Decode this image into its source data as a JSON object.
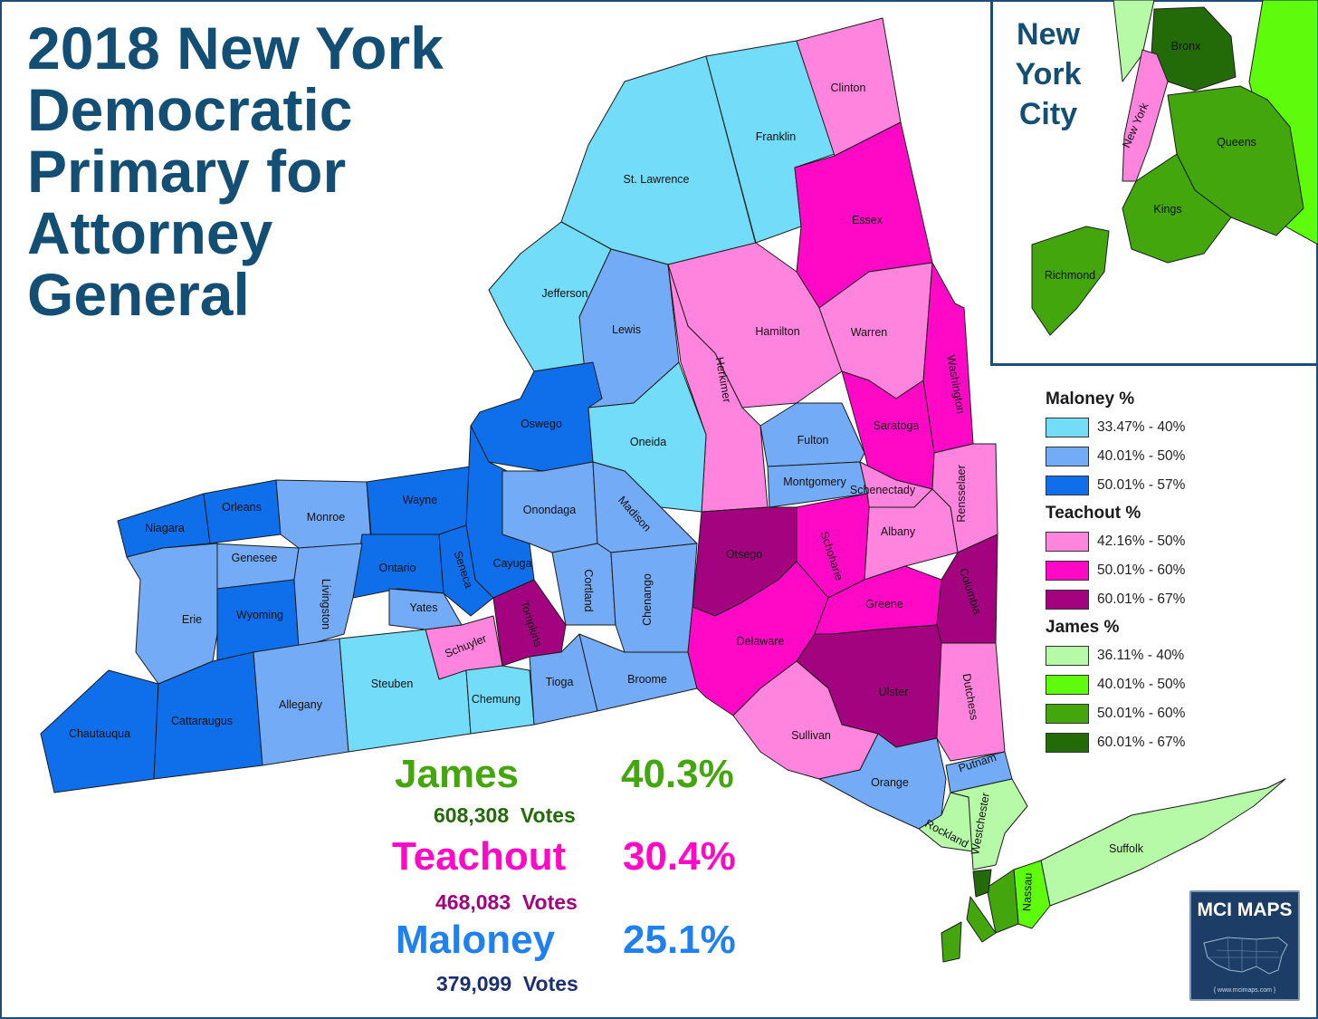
{
  "title": {
    "line1": "2018 New York",
    "line2": "Democratic",
    "line3": "Primary for",
    "line4": "Attorney",
    "line5": "General"
  },
  "inset": {
    "line1": "New",
    "line2": "York",
    "line3": "City"
  },
  "colors": {
    "maloney_1": "#73dcf8",
    "maloney_2": "#74abf6",
    "maloney_3": "#0f6ee9",
    "teachout_1": "#ff84dd",
    "teachout_2": "#ff09c6",
    "teachout_3": "#a3037f",
    "james_1": "#b6f9a7",
    "james_2": "#5ffb0c",
    "james_3": "#44a60d",
    "james_4": "#236b09",
    "border": "#1d4e79"
  },
  "legend": {
    "maloney": {
      "heading": "Maloney %",
      "bins": [
        "33.47% - 40%",
        "40.01% - 50%",
        "50.01% - 57%"
      ]
    },
    "teachout": {
      "heading": "Teachout %",
      "bins": [
        "42.16% - 50%",
        "50.01% - 60%",
        "60.01% - 67%"
      ]
    },
    "james": {
      "heading": "James %",
      "bins": [
        "36.11% - 40%",
        "40.01% - 50%",
        "50.01% - 60%",
        "60.01% - 67%"
      ]
    }
  },
  "results": {
    "james": {
      "name": "James",
      "pct": "40.3%",
      "votes": "608,308",
      "votes_label": "Votes"
    },
    "teachout": {
      "name": "Teachout",
      "pct": "30.4%",
      "votes": "468,083",
      "votes_label": "Votes"
    },
    "maloney": {
      "name": "Maloney",
      "pct": "25.1%",
      "votes": "379,099",
      "votes_label": "Votes"
    }
  },
  "counties": {
    "clinton": "Clinton",
    "franklin": "Franklin",
    "st_lawrence": "St. Lawrence",
    "essex": "Essex",
    "jefferson": "Jefferson",
    "lewis": "Lewis",
    "hamilton": "Hamilton",
    "warren": "Warren",
    "washington": "Washington",
    "herkimer": "Herkimer",
    "oswego": "Oswego",
    "oneida": "Oneida",
    "saratoga": "Saratoga",
    "fulton": "Fulton",
    "montgomery": "Montgomery",
    "schenectady": "Schenectady",
    "rensselaer": "Rensselaer",
    "niagara": "Niagara",
    "orleans": "Orleans",
    "monroe": "Monroe",
    "wayne": "Wayne",
    "onondaga": "Onondaga",
    "madison": "Madison",
    "albany": "Albany",
    "genesee": "Genesee",
    "ontario": "Ontario",
    "seneca": "Seneca",
    "cayuga": "Cayuga",
    "otsego": "Otsego",
    "schoharie": "Schoharie",
    "erie": "Erie",
    "wyoming": "Wyoming",
    "livingston": "Livingston",
    "yates": "Yates",
    "tompkins": "Tompkins",
    "cortland": "Cortland",
    "chenango": "Chenango",
    "greene": "Greene",
    "columbia": "Columbia",
    "schuyler": "Schuyler",
    "delaware": "Delaware",
    "steuben": "Steuben",
    "allegany": "Allegany",
    "chemung": "Chemung",
    "tioga": "Tioga",
    "broome": "Broome",
    "ulster": "Ulster",
    "dutchess": "Dutchess",
    "chautauqua": "Chautauqua",
    "cattaraugus": "Cattaraugus",
    "sullivan": "Sullivan",
    "orange": "Orange",
    "putnam": "Putnam",
    "westchester": "Westchester",
    "rockland": "Rockland",
    "suffolk": "Suffolk",
    "nassau": "Nassau",
    "bronx": "Bronx",
    "new_york": "New York",
    "queens": "Queens",
    "kings": "Kings",
    "richmond": "Richmond"
  },
  "logo": {
    "text": "MCI MAPS",
    "url": "{ www.mcimaps.com }"
  }
}
